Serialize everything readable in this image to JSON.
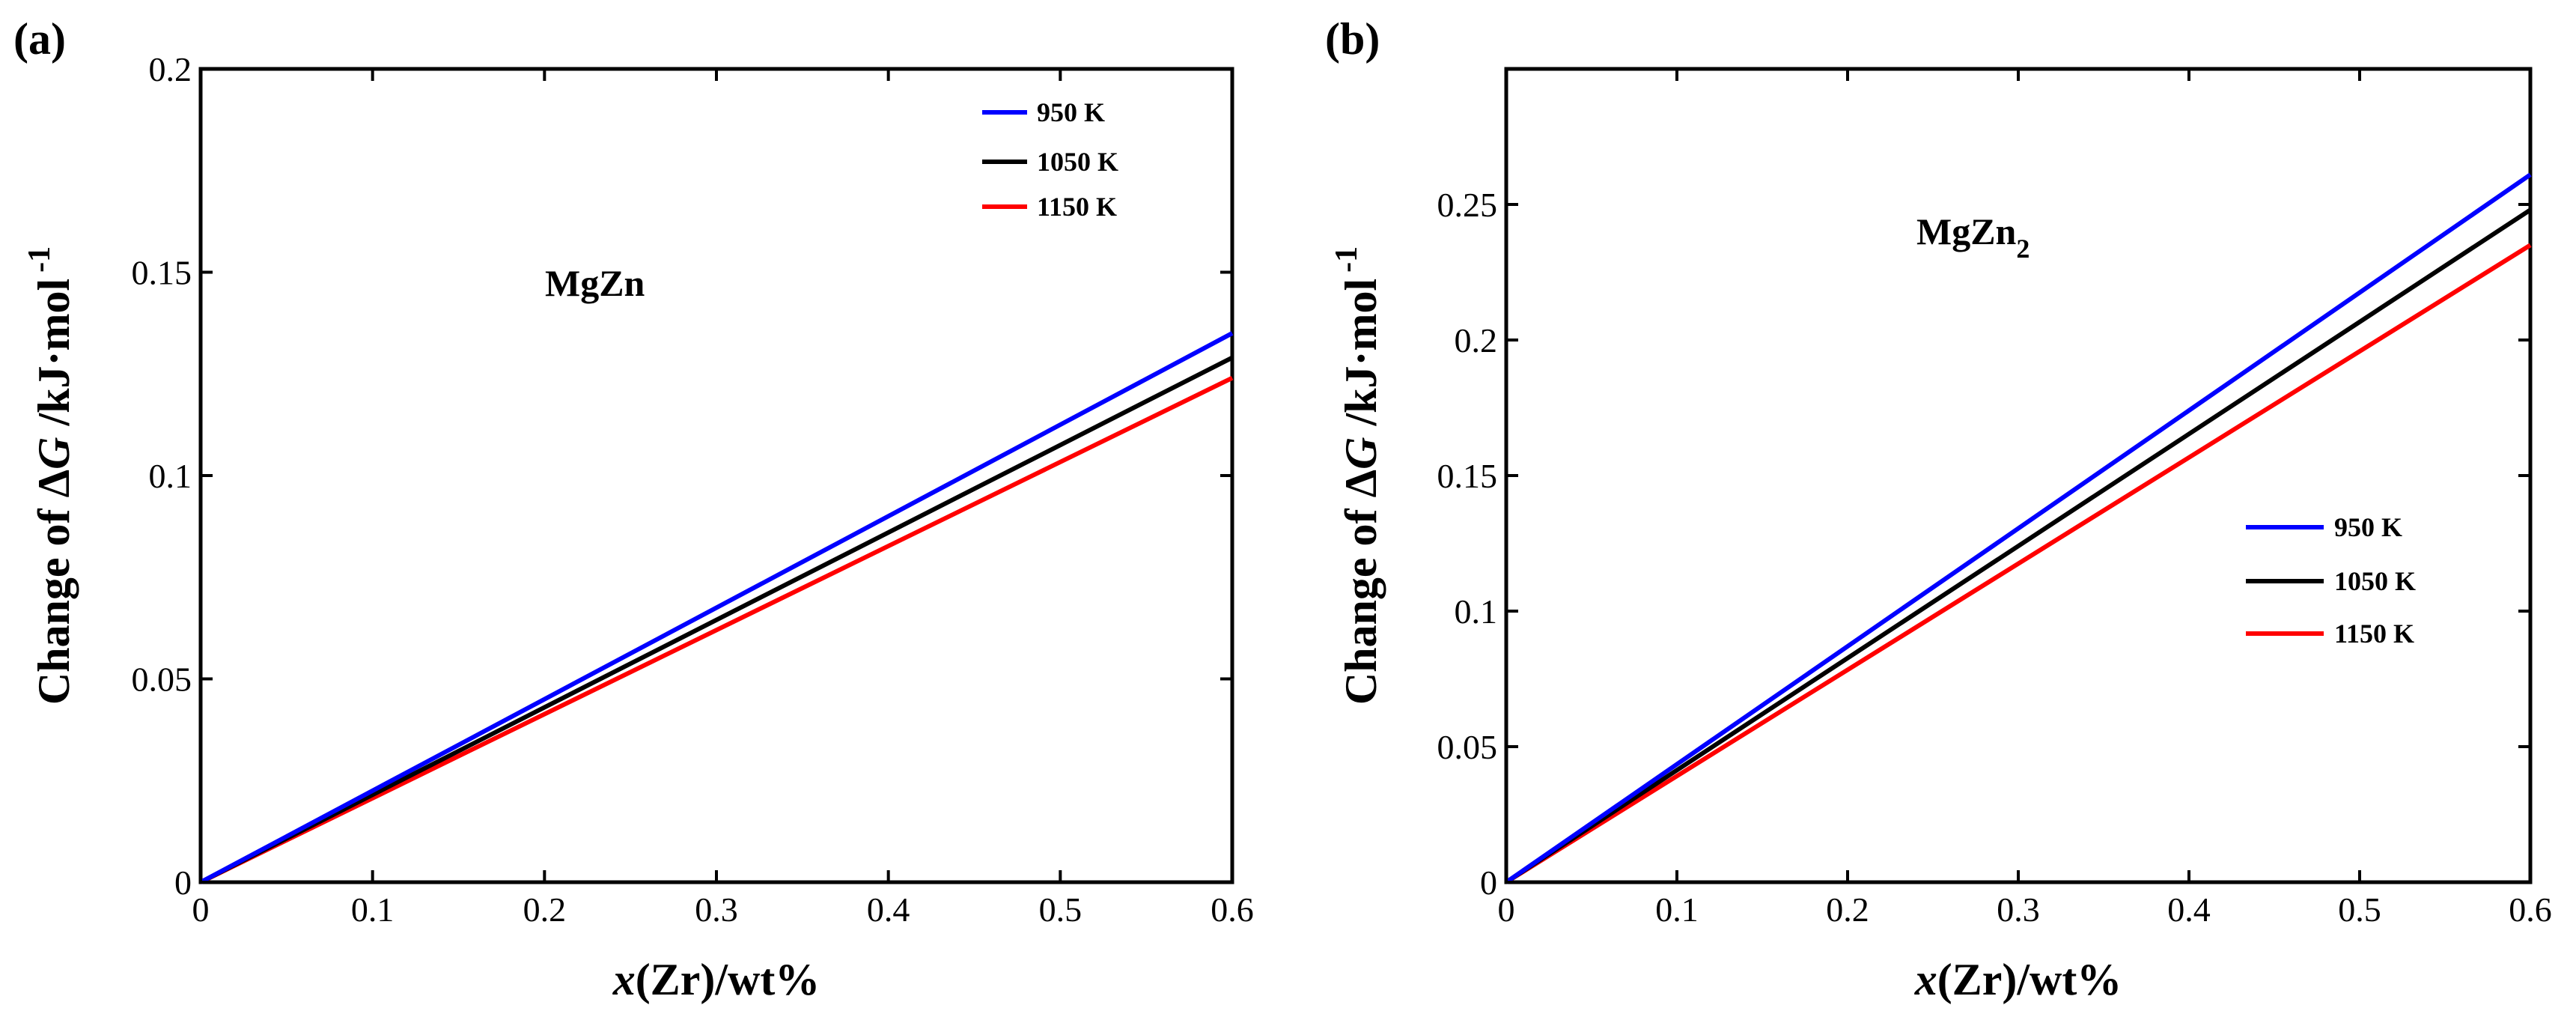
{
  "chart_data": [
    {
      "type": "line",
      "panel_label": "(a)",
      "annotation": "MgZn",
      "annotation_sub": "",
      "xlabel_italic": "x",
      "xlabel_rest": "(Zr)/wt%",
      "ylabel_prefix": "Change of Δ",
      "ylabel_italic": "G",
      "ylabel_suffix": " /kJ·mol",
      "ylabel_superscript": "-1",
      "xlim": [
        0,
        0.6
      ],
      "ylim": [
        0,
        0.2
      ],
      "xticks": [
        0,
        0.1,
        0.2,
        0.3,
        0.4,
        0.5,
        0.6
      ],
      "xtick_labels": [
        "0",
        "0.1",
        "0.2",
        "0.3",
        "0.4",
        "0.5",
        "0.6"
      ],
      "yticks": [
        0,
        0.05,
        0.1,
        0.15,
        0.2
      ],
      "ytick_labels": [
        "0",
        "0.05",
        "0.1",
        "0.15",
        "0.2"
      ],
      "legend_position": "top-right",
      "series": [
        {
          "name": "950 K",
          "color": "#0000ff",
          "x": [
            0,
            0.6
          ],
          "y": [
            0,
            0.135
          ]
        },
        {
          "name": "1050 K",
          "color": "#000000",
          "x": [
            0,
            0.6
          ],
          "y": [
            0,
            0.129
          ]
        },
        {
          "name": "1150 K",
          "color": "#ff0000",
          "x": [
            0,
            0.6
          ],
          "y": [
            0,
            0.124
          ]
        }
      ]
    },
    {
      "type": "line",
      "panel_label": "(b)",
      "annotation": "MgZn",
      "annotation_sub": "2",
      "xlabel_italic": "x",
      "xlabel_rest": "(Zr)/wt%",
      "ylabel_prefix": "Change of Δ",
      "ylabel_italic": "G",
      "ylabel_suffix": " /kJ·mol",
      "ylabel_superscript": "-1",
      "xlim": [
        0,
        0.6
      ],
      "ylim": [
        0,
        0.3
      ],
      "xticks": [
        0,
        0.1,
        0.2,
        0.3,
        0.4,
        0.5,
        0.6
      ],
      "xtick_labels": [
        "0",
        "0.1",
        "0.2",
        "0.3",
        "0.4",
        "0.5",
        "0.6"
      ],
      "yticks": [
        0,
        0.05,
        0.1,
        0.15,
        0.2,
        0.25
      ],
      "ytick_labels": [
        "0",
        "0.05",
        "0.1",
        "0.15",
        "0.2",
        "0.25"
      ],
      "legend_position": "middle-right",
      "series": [
        {
          "name": "950 K",
          "color": "#0000ff",
          "x": [
            0,
            0.6
          ],
          "y": [
            0,
            0.261
          ]
        },
        {
          "name": "1050 K",
          "color": "#000000",
          "x": [
            0,
            0.6
          ],
          "y": [
            0,
            0.248
          ]
        },
        {
          "name": "1150 K",
          "color": "#ff0000",
          "x": [
            0,
            0.6
          ],
          "y": [
            0,
            0.235
          ]
        }
      ]
    }
  ]
}
